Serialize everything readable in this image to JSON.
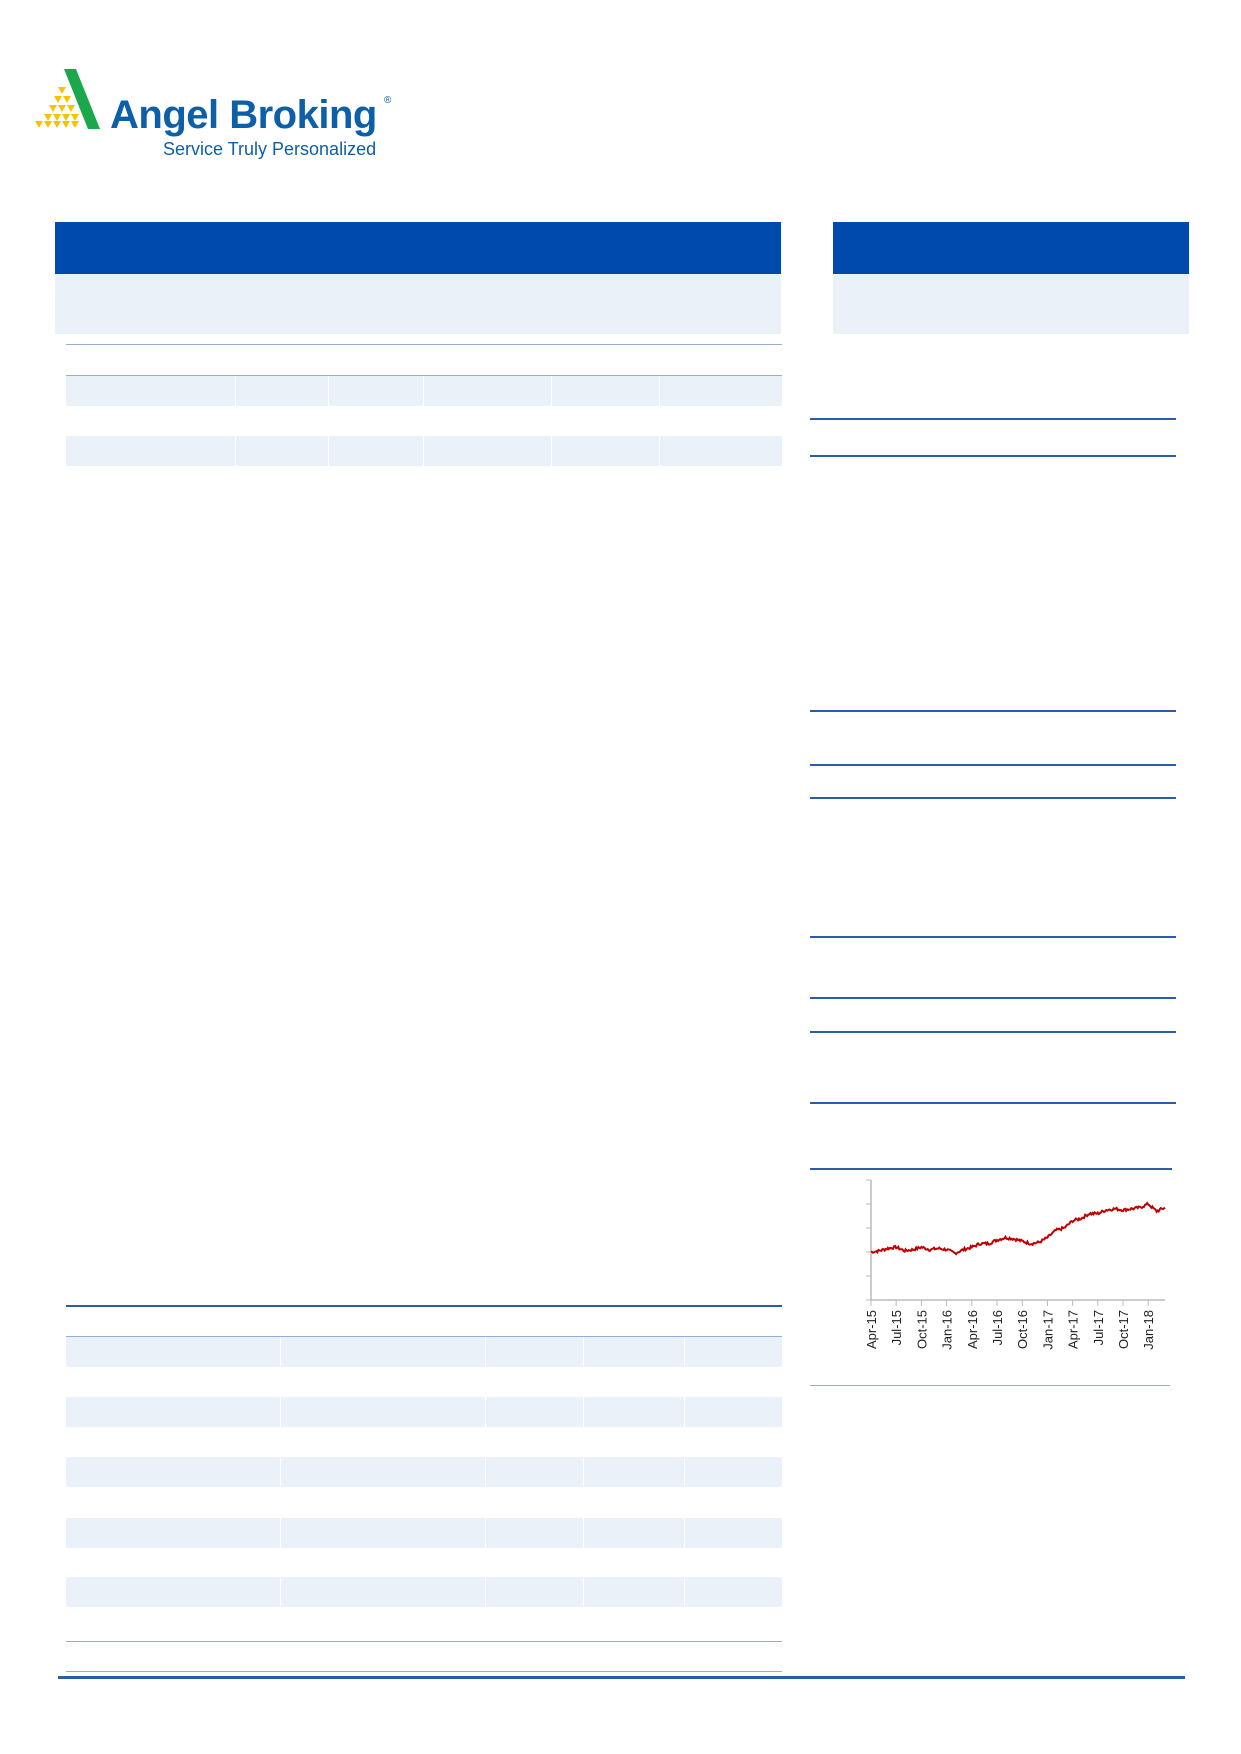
{
  "logo": {
    "name": "Angel Broking",
    "registered": "®",
    "tagline": "Service Truly Personalized",
    "colors": {
      "green": "#1aa84a",
      "yellow": "#f5c400",
      "blue": "#0d5fa8"
    }
  },
  "colors": {
    "header": "#004aad",
    "band": "#eaf1f8",
    "rule": "#2a5ea8",
    "line": "#c00000"
  },
  "chart_data": {
    "type": "line",
    "title": "",
    "xlabel": "",
    "ylabel": "",
    "x_tick_labels": [
      "Apr-15",
      "Jul-15",
      "Oct-15",
      "Jan-16",
      "Apr-16",
      "Jul-16",
      "Oct-16",
      "Jan-17",
      "Apr-17",
      "Jul-17",
      "Oct-17",
      "Jan-18"
    ],
    "y_ticks_count": 5,
    "ylim": [
      0,
      5
    ],
    "grid": false,
    "series": [
      {
        "x": [
          "Apr-15",
          "May-15",
          "Jun-15",
          "Jul-15",
          "Aug-15",
          "Sep-15",
          "Oct-15",
          "Nov-15",
          "Dec-15",
          "Jan-16",
          "Feb-16",
          "Mar-16",
          "Apr-16",
          "May-16",
          "Jun-16",
          "Jul-16",
          "Aug-16",
          "Sep-16",
          "Oct-16",
          "Nov-16",
          "Dec-16",
          "Jan-17",
          "Feb-17",
          "Mar-17",
          "Apr-17",
          "May-17",
          "Jun-17",
          "Jul-17",
          "Aug-17",
          "Sep-17",
          "Oct-17",
          "Nov-17",
          "Dec-17",
          "Jan-18",
          "Feb-18",
          "Mar-18"
        ],
        "values": [
          2.0,
          2.05,
          2.15,
          2.2,
          2.05,
          2.1,
          2.2,
          2.1,
          2.15,
          2.1,
          1.95,
          2.1,
          2.2,
          2.35,
          2.35,
          2.5,
          2.6,
          2.55,
          2.45,
          2.35,
          2.4,
          2.6,
          2.9,
          3.0,
          3.3,
          3.4,
          3.6,
          3.6,
          3.75,
          3.8,
          3.75,
          3.8,
          3.85,
          4.0,
          3.7,
          3.85
        ]
      }
    ]
  }
}
